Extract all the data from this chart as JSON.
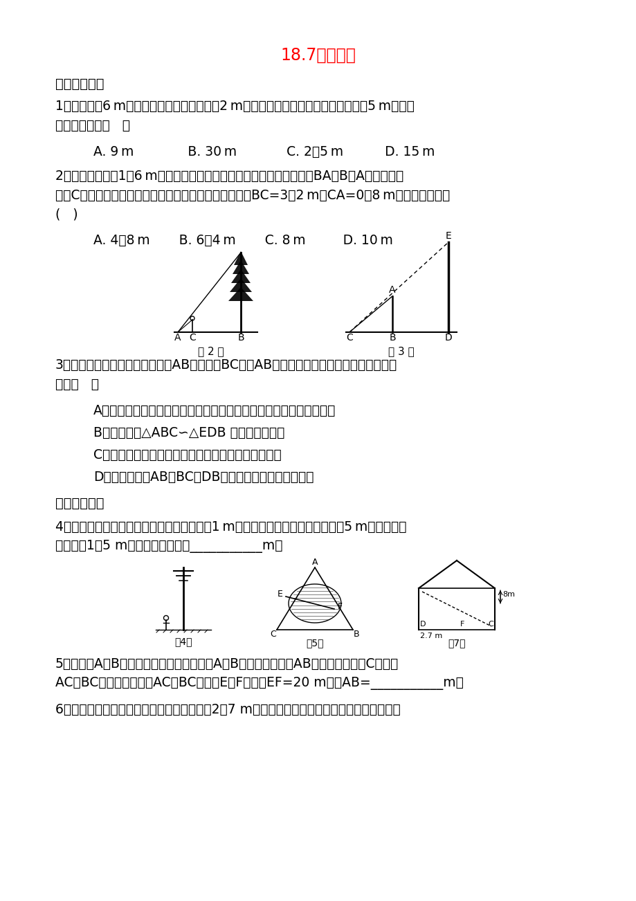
{
  "title": "18.7应用举例",
  "title_color": "#FF0000",
  "bg_color": "#FFFFFF",
  "text_color": "#000000",
  "section1": "一、夹实基础",
  "section2": "二、能力提升",
  "q1_line1": "1．一棵高为6 m的树在水平地面上的影长为2 m，此时测得附近一个建筑物的影长为5 m，则该",
  "q1_line2": "建筑物的高为（   ）",
  "q1_options": "A. 9 m             B. 30 m            C. 2．5 m          D. 15 m",
  "q2_line1": "2．如图，身高为1．6 m的某学生想测量一棵大树的高度，她沿着树影BA由B向A走去，当走",
  "q2_line2": "到点C时，她的影子顶端正好与树的影子顶端重合，测得BC=3．2 m，CA=0．8 m，则树的高度为",
  "q2_line3": "(   )",
  "q2_options": "A. 4．8 m       B. 6．4 m       C. 8 m         D. 10 m",
  "fig2_label": "第 2 题",
  "fig3_label": "第 3 题",
  "q3_line1": "3．如图是测量旗杆的方法．已知AB是标杆，BC表示AB在太阳光下的影子，则下列叙述错误",
  "q3_line2": "的是（   ）",
  "q3_A": "A．可以利用在同一时刻，不同物体与其影长的比相等来计算旗杆的高",
  "q3_B": "B．可以利用△ABC∽△EDB 来计算旗杆的高",
  "q3_C": "C．只需测量出标杆和旗杆的影长就可计算出旗杆的高",
  "q3_D": "D．需要测量出AB、BC和DB的长，才能计算出旗杆的高",
  "q4_line1": "4．如图，在同一时刻，小明测得他的影长为1 m，距他不远处的一棵树的影长为5 m，已知小明",
  "q4_line2": "的身高为1．5 m，则这棵树的高是___________m．",
  "fig4_label": "第4题",
  "fig5_label": "第5题",
  "fig7_label": "第7题",
  "q5_line1": "5．如图，A、B两处被池塘隔开，为了测量A、B两处的距离，在AB外选一适当的点C，连接",
  "q5_line2": "AC、BC，并分别取线段AC、BC的中点E、F，测得EF=20 m，则AB=___________m．",
  "q6_line1": "6．阳光通过窗口照射到室内，在地面上留下2．7 m宽的亮区（如图所示），已知亮区到窗口下"
}
